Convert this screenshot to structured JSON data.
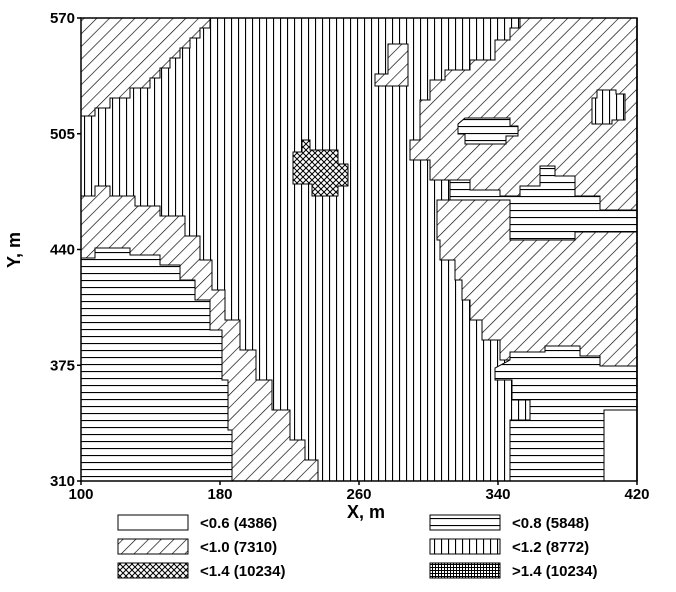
{
  "map": {
    "x_axis": {
      "label": "X, m",
      "range": [
        100,
        420
      ],
      "ticks": [
        {
          "value": 100,
          "label": "100"
        },
        {
          "value": 180,
          "label": "180"
        },
        {
          "value": 260,
          "label": "260"
        },
        {
          "value": 340,
          "label": "340"
        },
        {
          "value": 420,
          "label": "420"
        }
      ]
    },
    "y_axis": {
      "label": "Y, m",
      "range": [
        310,
        570
      ],
      "ticks": [
        {
          "value": 310,
          "label": "310"
        },
        {
          "value": 375,
          "label": "375"
        },
        {
          "value": 440,
          "label": "440"
        },
        {
          "value": 505,
          "label": "505"
        },
        {
          "value": 570,
          "label": "570"
        }
      ]
    },
    "legend": [
      {
        "pattern": "blank",
        "label": "<0.6 (4386)"
      },
      {
        "pattern": "horizontal",
        "label": "<0.8 (5848)"
      },
      {
        "pattern": "diagonal",
        "label": "<1.0 (7310)"
      },
      {
        "pattern": "vertical",
        "label": "<1.2 (8772)"
      },
      {
        "pattern": "crosshatch",
        "label": "<1.4 (10234)"
      },
      {
        "pattern": "dense-grid",
        "label": ">1.4 (10234)"
      }
    ]
  }
}
